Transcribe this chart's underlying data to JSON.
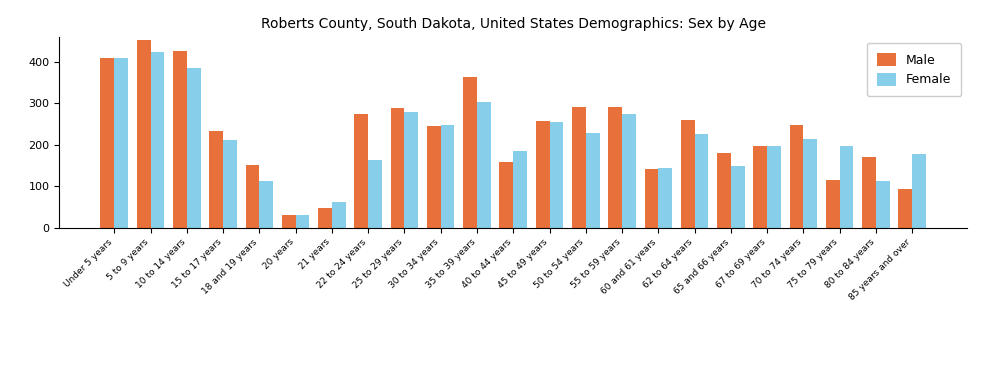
{
  "title": "Roberts County, South Dakota, United States Demographics: Sex by Age",
  "categories": [
    "Under 5 years",
    "5 to 9 years",
    "10 to 14 years",
    "15 to 17 years",
    "18 and 19 years",
    "20 years",
    "21 years",
    "22 to 24 years",
    "25 to 29 years",
    "30 to 34 years",
    "35 to 39 years",
    "40 to 44 years",
    "45 to 49 years",
    "50 to 54 years",
    "55 to 59 years",
    "60 and 61 years",
    "62 to 64 years",
    "65 and 66 years",
    "67 to 69 years",
    "70 to 74 years",
    "75 to 79 years",
    "80 to 84 years",
    "85 years and over"
  ],
  "male": [
    408,
    452,
    425,
    232,
    150,
    30,
    46,
    273,
    289,
    244,
    362,
    158,
    257,
    291,
    290,
    141,
    260,
    179,
    197,
    246,
    115,
    170,
    92
  ],
  "female": [
    408,
    422,
    385,
    210,
    112,
    30,
    62,
    163,
    278,
    246,
    303,
    184,
    255,
    229,
    274,
    144,
    226,
    149,
    197,
    214,
    196,
    111,
    178
  ],
  "male_color": "#E8703A",
  "female_color": "#87CEEB",
  "bar_width": 0.38,
  "ylim": [
    0,
    460
  ],
  "legend_labels": [
    "Male",
    "Female"
  ],
  "background_color": "#ffffff",
  "title_fontsize": 10,
  "tick_fontsize": 6.5
}
